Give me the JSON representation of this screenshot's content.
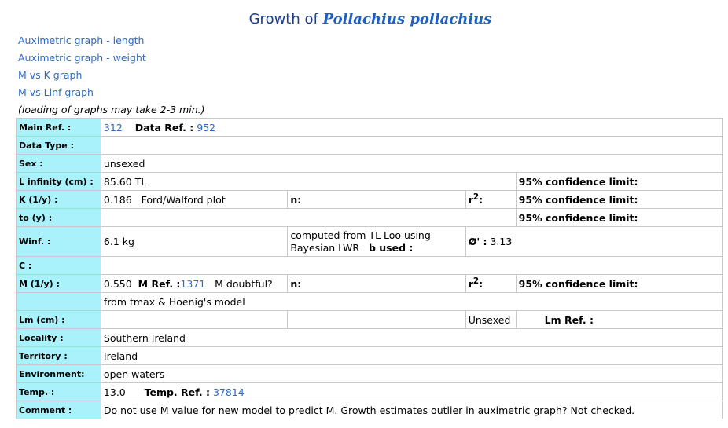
{
  "title_prefix": "Growth of",
  "species": "Pollachius pollachius",
  "links": [
    "Auximetric graph - length",
    "Auximetric graph - weight",
    "M vs K graph",
    "M vs Linf graph"
  ],
  "loading_note": "(loading of graphs may take 2-3 min.)",
  "labels": {
    "main_ref": "Main Ref. :",
    "data_ref": "Data Ref. :",
    "data_type": "Data Type :",
    "sex": "Sex :",
    "linf": "L infinity (cm) :",
    "k": "K (1/y) :",
    "to": "to (y) :",
    "winf": "Winf. :",
    "c": "C :",
    "m": "M (1/y) :",
    "lm": "Lm (cm) :",
    "locality": "Locality :",
    "territory": "Territory :",
    "environment": "Environment:",
    "temp": "Temp. :",
    "temp_ref": "Temp. Ref. :",
    "comment": "Comment :",
    "conf": "95% confidence limit:",
    "n": "n:",
    "r2": "r",
    "r2_sup": "2",
    "r2_colon": ":",
    "b_used": "b used :",
    "phi": "Ø' :",
    "m_ref": "M Ref. :",
    "m_doubtful": "M doubtful?",
    "lm_ref": "Lm Ref. :"
  },
  "values": {
    "main_ref": "312",
    "data_ref": "952",
    "sex": "unsexed",
    "linf": "85.60 TL",
    "k": "0.186",
    "k_method": "Ford/Walford plot",
    "winf": "6.1 kg",
    "winf_note": "computed from TL Loo using Bayesian LWR",
    "phi": "3.13",
    "m": "0.550",
    "m_ref": "1371",
    "m_method": "from tmax & Hoenig's model",
    "lm_sex": "Unsexed",
    "locality": "Southern Ireland",
    "territory": "Ireland",
    "environment": "open waters",
    "temp": "13.0",
    "temp_ref": "37814",
    "comment": "Do not use M value for new model to predict M. Growth estimates outlier in auximetric graph? Not checked."
  }
}
